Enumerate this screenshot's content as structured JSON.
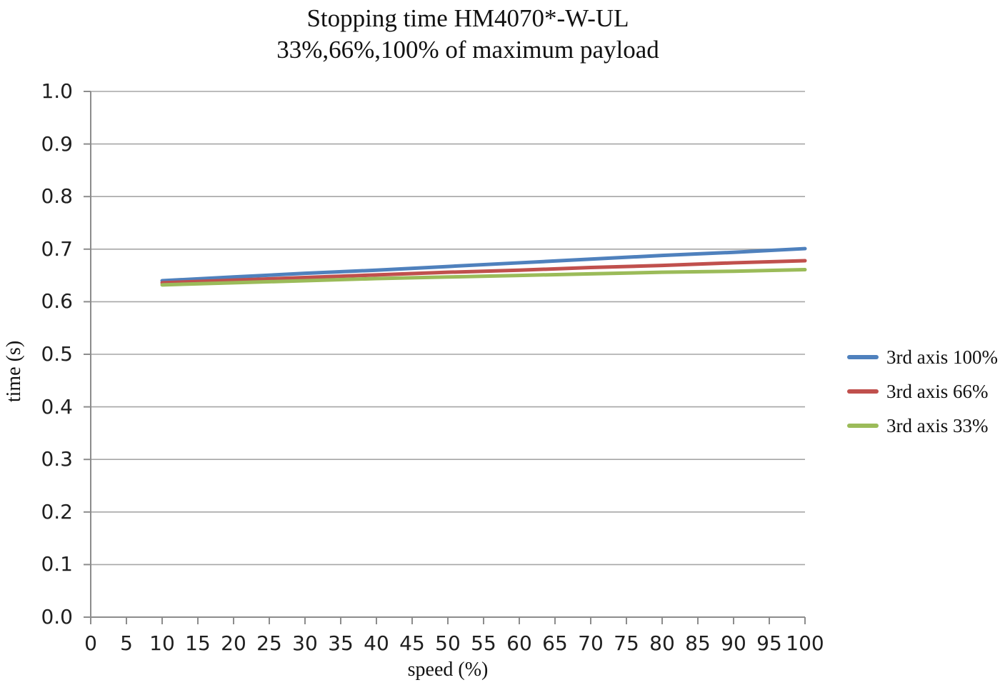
{
  "chart_data": {
    "type": "line",
    "title": "Stopping time HM4070*-W-UL",
    "subtitle": "33%,66%,100% of maximum payload",
    "xlabel": "speed (%)",
    "ylabel": "time (s)",
    "xlim": [
      0,
      100
    ],
    "ylim": [
      0.0,
      1.0
    ],
    "x_ticks": [
      0,
      5,
      10,
      15,
      20,
      25,
      30,
      35,
      40,
      45,
      50,
      55,
      60,
      65,
      70,
      75,
      80,
      85,
      90,
      95,
      100
    ],
    "y_ticks": [
      0.0,
      0.1,
      0.2,
      0.3,
      0.4,
      0.5,
      0.6,
      0.7,
      0.8,
      0.9,
      1.0
    ],
    "y_tick_decimals": 1,
    "grid": "horizontal",
    "legend_position": "right",
    "x": [
      10,
      20,
      30,
      40,
      50,
      60,
      70,
      80,
      90,
      100
    ],
    "series": [
      {
        "name": "3rd axis 100%",
        "color": "#4F81BD",
        "values": [
          0.64,
          0.647,
          0.654,
          0.66,
          0.667,
          0.674,
          0.681,
          0.688,
          0.694,
          0.701
        ]
      },
      {
        "name": "3rd axis 66%",
        "color": "#C0504D",
        "values": [
          0.636,
          0.641,
          0.646,
          0.651,
          0.656,
          0.66,
          0.665,
          0.669,
          0.674,
          0.678
        ]
      },
      {
        "name": "3rd axis 33%",
        "color": "#9BBB59",
        "values": [
          0.632,
          0.636,
          0.64,
          0.644,
          0.647,
          0.65,
          0.653,
          0.656,
          0.658,
          0.661
        ]
      }
    ],
    "colors": {
      "grid": "#A6A6A6",
      "axis": "#8C8C8C",
      "background": "#FFFFFF",
      "text": "#111111"
    }
  }
}
